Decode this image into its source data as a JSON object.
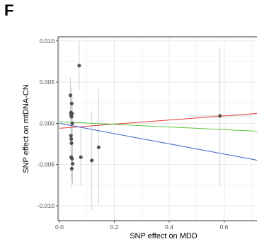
{
  "panel_label": "F",
  "chart_data": {
    "type": "scatter",
    "xlabel": "SNP effect on MDD",
    "ylabel": "SNP effect on mtDNA-CN",
    "xlim": [
      -0.005,
      0.72
    ],
    "ylim": [
      -0.0118,
      0.0105
    ],
    "x_ticks": [
      0.0,
      0.2,
      0.4,
      0.6
    ],
    "x_tick_labels": [
      "0.0",
      "0.2",
      "0.4",
      "0.6"
    ],
    "y_ticks": [
      -0.01,
      -0.005,
      0.0,
      0.005,
      0.01
    ],
    "y_tick_labels": [
      "-0.010",
      "-0.005",
      "0.000",
      "0.005",
      "0.010"
    ],
    "grid": true,
    "colors": {
      "point": "#555555",
      "error_bar": "#c8d4cf",
      "grid": "#e5e5e5",
      "panel_border": "#333333",
      "line_red": "#e03a3a",
      "line_green": "#5cc43c",
      "line_blue": "#3a5bc8"
    },
    "points": [
      {
        "x": 0.04,
        "y": 0.0034,
        "y_low": 0.0012,
        "y_high": 0.0056,
        "x_low": 0.036,
        "x_high": 0.044
      },
      {
        "x": 0.042,
        "y": 0.0013,
        "y_low": -0.0008,
        "y_high": 0.0034,
        "x_low": 0.038,
        "x_high": 0.046
      },
      {
        "x": 0.043,
        "y": 0.001,
        "y_low": -0.0012,
        "y_high": 0.0032,
        "x_low": 0.039,
        "x_high": 0.047
      },
      {
        "x": 0.044,
        "y": 0.0008,
        "y_low": -0.001,
        "y_high": 0.0028,
        "x_low": 0.04,
        "x_high": 0.048
      },
      {
        "x": 0.045,
        "y": 0.0024,
        "y_low": 0.0004,
        "y_high": 0.0044,
        "x_low": 0.041,
        "x_high": 0.049
      },
      {
        "x": 0.046,
        "y": 0.0012,
        "y_low": -0.001,
        "y_high": 0.0034,
        "x_low": 0.042,
        "x_high": 0.05
      },
      {
        "x": 0.047,
        "y": 0.0,
        "y_low": -0.002,
        "y_high": 0.002,
        "x_low": 0.043,
        "x_high": 0.051
      },
      {
        "x": 0.042,
        "y": -0.0015,
        "y_low": -0.0035,
        "y_high": 0.0005,
        "x_low": 0.038,
        "x_high": 0.046
      },
      {
        "x": 0.043,
        "y": -0.0019,
        "y_low": -0.004,
        "y_high": 0.0002,
        "x_low": 0.039,
        "x_high": 0.047
      },
      {
        "x": 0.044,
        "y": -0.0024,
        "y_low": -0.0046,
        "y_high": -0.0002,
        "x_low": 0.04,
        "x_high": 0.048
      },
      {
        "x": 0.043,
        "y": -0.0041,
        "y_low": -0.0066,
        "y_high": -0.0016,
        "x_low": 0.039,
        "x_high": 0.047
      },
      {
        "x": 0.046,
        "y": -0.0043,
        "y_low": -0.007,
        "y_high": -0.0016,
        "x_low": 0.042,
        "x_high": 0.05
      },
      {
        "x": 0.045,
        "y": -0.0055,
        "y_low": -0.008,
        "y_high": -0.003,
        "x_low": 0.041,
        "x_high": 0.049
      },
      {
        "x": 0.048,
        "y": -0.0049,
        "y_low": -0.0074,
        "y_high": -0.0024,
        "x_low": 0.044,
        "x_high": 0.052
      },
      {
        "x": 0.072,
        "y": 0.007,
        "y_low": 0.004,
        "y_high": 0.01,
        "x_low": 0.067,
        "x_high": 0.077
      },
      {
        "x": 0.078,
        "y": -0.0041,
        "y_low": -0.0076,
        "y_high": -0.0006,
        "x_low": 0.073,
        "x_high": 0.083
      },
      {
        "x": 0.118,
        "y": -0.0045,
        "y_low": -0.0105,
        "y_high": 0.0015,
        "x_low": 0.113,
        "x_high": 0.123
      },
      {
        "x": 0.143,
        "y": -0.0029,
        "y_low": -0.01,
        "y_high": 0.0042,
        "x_low": 0.138,
        "x_high": 0.148
      },
      {
        "x": 0.585,
        "y": 0.0009,
        "y_low": -0.0077,
        "y_high": 0.0092,
        "x_low": 0.47,
        "x_high": 0.7
      }
    ],
    "fit_lines": [
      {
        "color": "#e03a3a",
        "intercept": -0.0006,
        "slope": 0.0025
      },
      {
        "color": "#5cc43c",
        "intercept": 0.0002,
        "slope": -0.0016
      },
      {
        "color": "#3a5bc8",
        "intercept": 0.0,
        "slope": -0.0062
      }
    ]
  }
}
